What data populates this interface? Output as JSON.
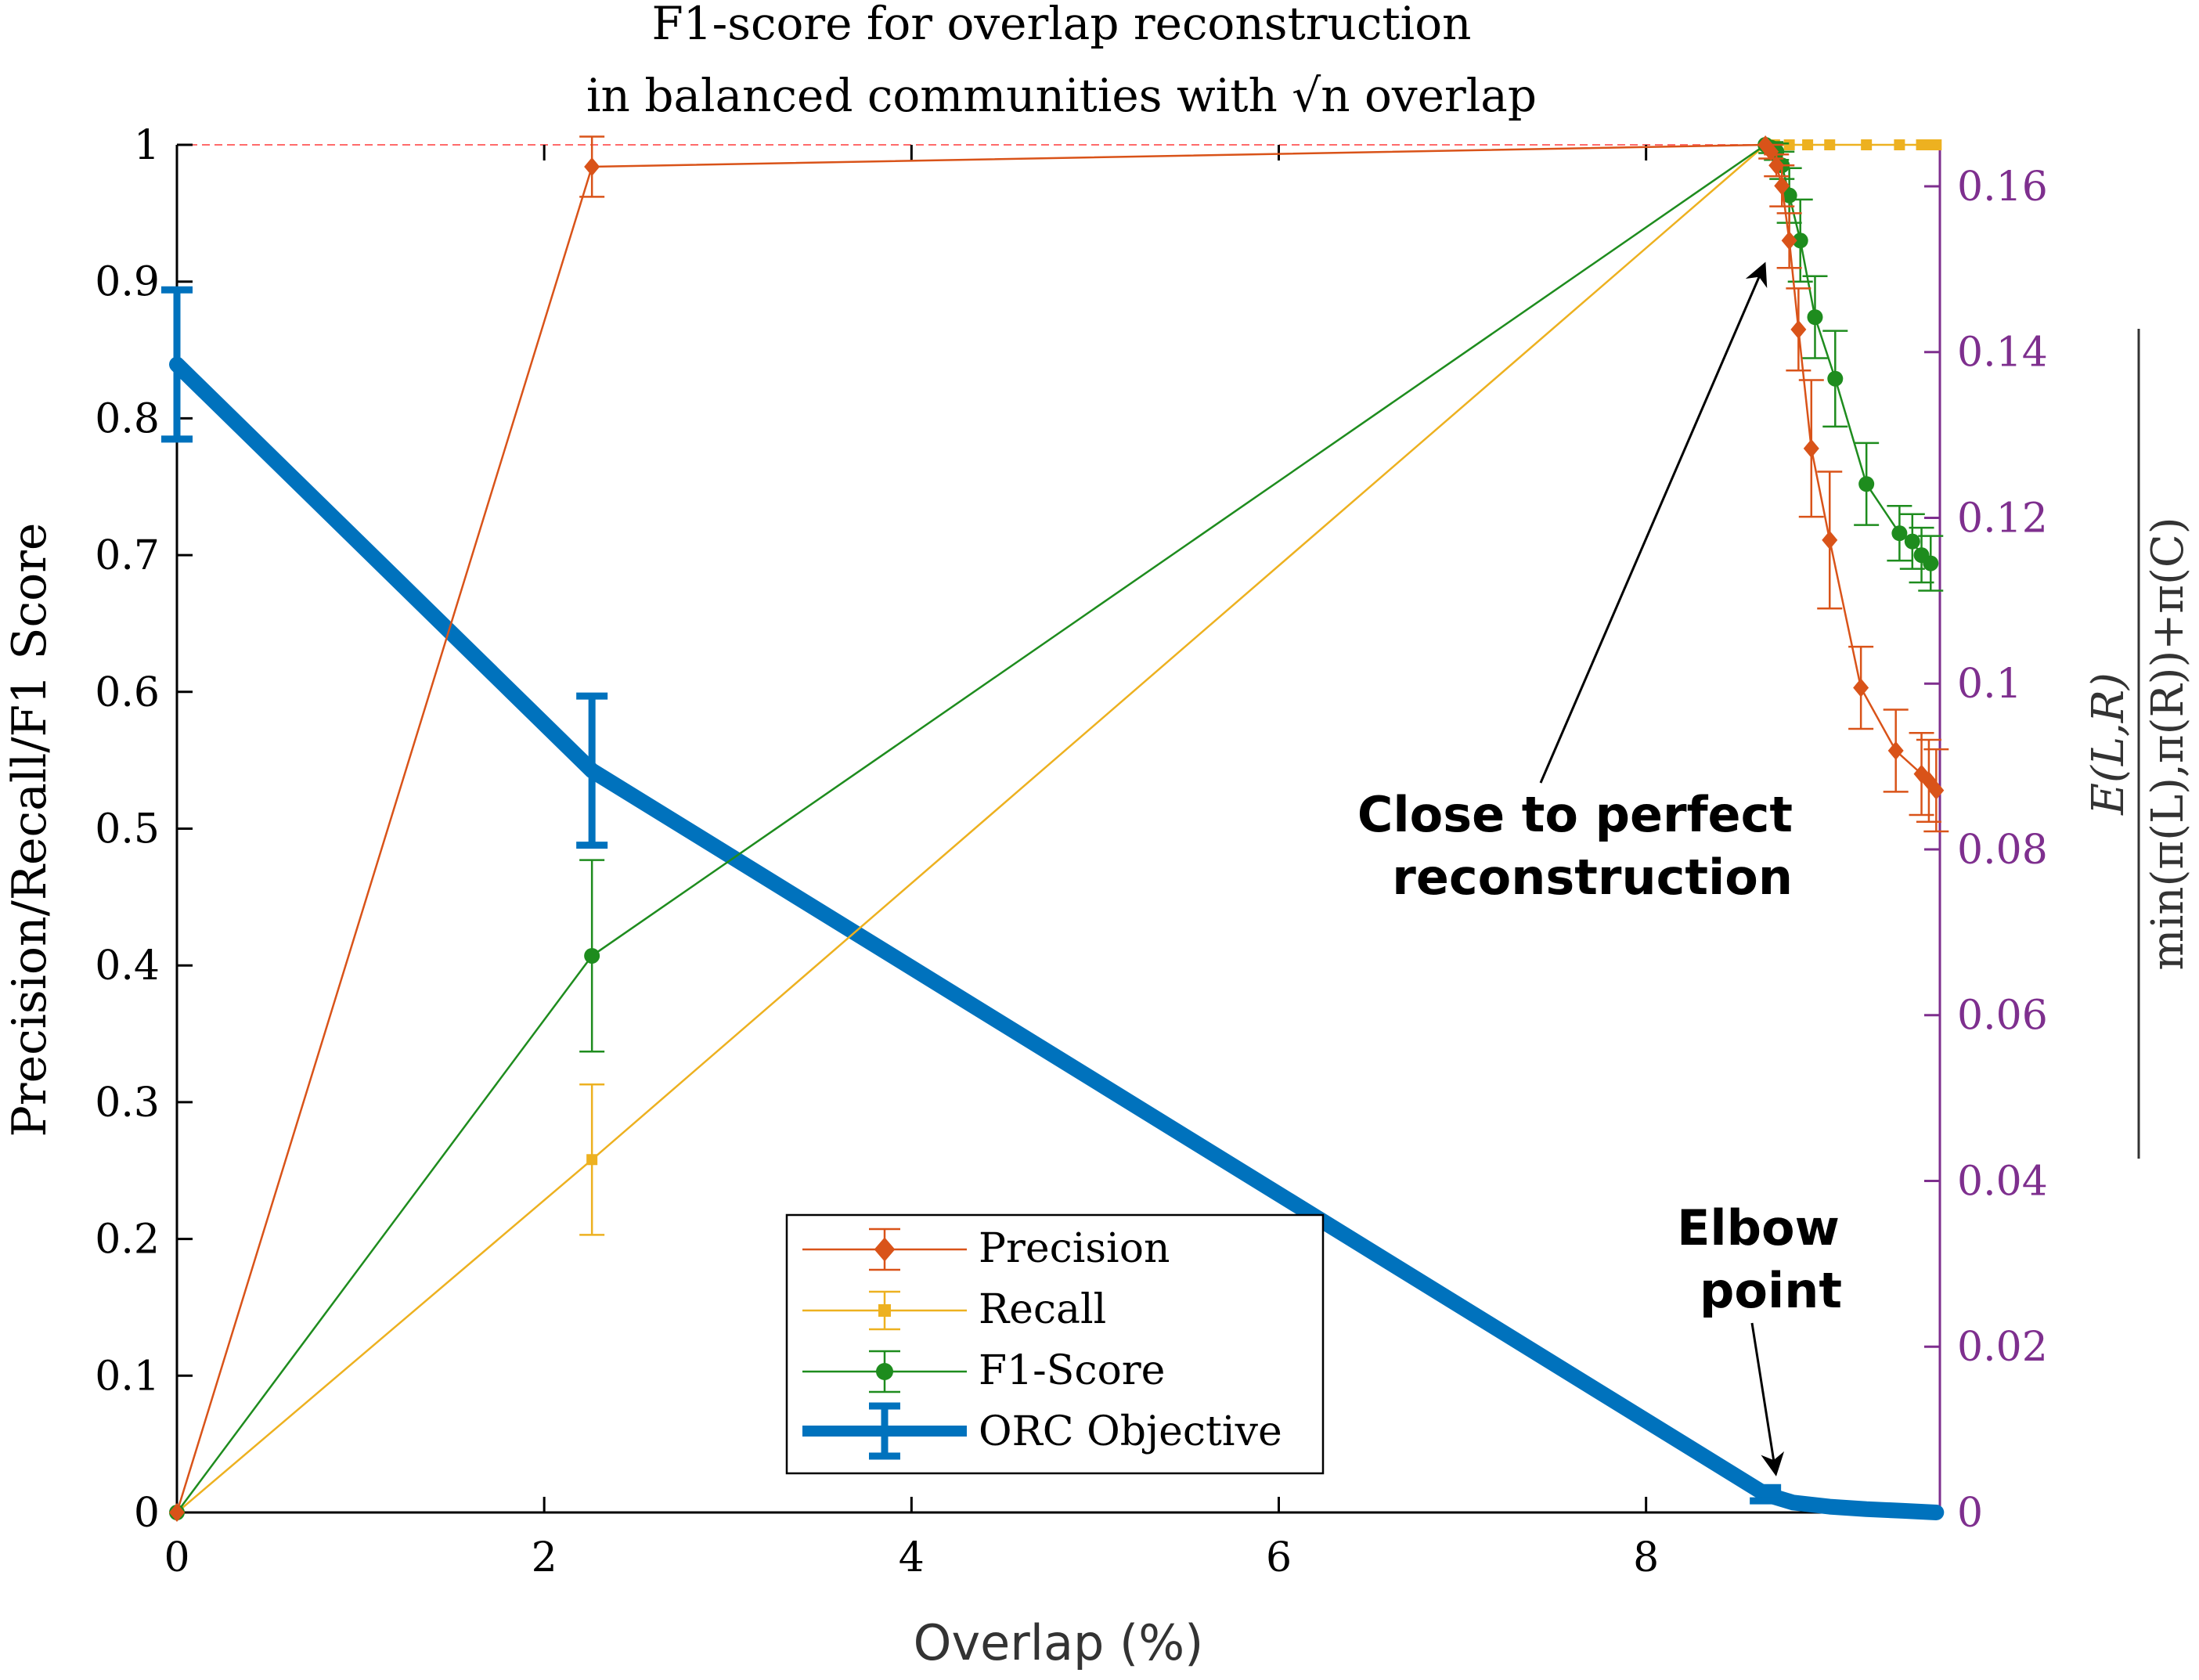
{
  "chart_data": {
    "type": "line",
    "title": [
      "F1-score for overlap reconstruction",
      "in balanced communities with √n overlap"
    ],
    "xlabel": "Overlap (%)",
    "ylabel": "Precision/Recall/F1 Score",
    "ylabel_right": {
      "numerator": "E(L,R)",
      "denominator": "min(π(L),π(R))+π(C)"
    },
    "xlim": [
      0,
      9.6
    ],
    "ylim": [
      0,
      1
    ],
    "ylim_right": [
      0,
      0.165
    ],
    "xticks": [
      0,
      2,
      4,
      6,
      8
    ],
    "xtick_labels": [
      "0",
      "2",
      "4",
      "6",
      "8"
    ],
    "yticks": [
      0,
      0.1,
      0.2,
      0.3,
      0.4,
      0.5,
      0.6,
      0.7,
      0.8,
      0.9,
      1
    ],
    "ytick_labels": [
      "0",
      "0.1",
      "0.2",
      "0.3",
      "0.4",
      "0.5",
      "0.6",
      "0.7",
      "0.8",
      "0.9",
      "1"
    ],
    "yticks_right": [
      0,
      0.02,
      0.04,
      0.06,
      0.08,
      0.1,
      0.12,
      0.14,
      0.16
    ],
    "ytick_labels_right": [
      "0",
      "0.02",
      "0.04",
      "0.06",
      "0.08",
      "0.1",
      "0.12",
      "0.14",
      "0.16"
    ],
    "reference_line_y": 1,
    "grid": false,
    "legend_position": "bottom-center",
    "colors": {
      "precision": "#D95319",
      "recall": "#EDB120",
      "f1": "#1E8C1E",
      "orc": "#0072BD",
      "right_axis": "#7E2F8E",
      "reference": "#FF6B6B"
    },
    "series": [
      {
        "name": "Precision",
        "axis": "left",
        "marker": "diamond",
        "x": [
          0,
          2.26,
          8.65,
          8.68,
          8.71,
          8.74,
          8.78,
          8.83,
          8.9,
          9.0,
          9.17,
          9.36,
          9.5,
          9.54,
          9.58
        ],
        "y": [
          0,
          0.984,
          1.0,
          0.995,
          0.985,
          0.97,
          0.93,
          0.865,
          0.778,
          0.711,
          0.603,
          0.557,
          0.54,
          0.535,
          0.528
        ],
        "err": [
          0,
          0.022,
          0,
          0.005,
          0.008,
          0.015,
          0.02,
          0.03,
          0.05,
          0.05,
          0.03,
          0.03,
          0.03,
          0.03,
          0.03
        ]
      },
      {
        "name": "Recall",
        "axis": "left",
        "marker": "star",
        "x": [
          0,
          2.26,
          8.65,
          8.7,
          8.78,
          8.88,
          9.0,
          9.2,
          9.38,
          9.5,
          9.55,
          9.58
        ],
        "y": [
          0,
          0.258,
          1.0,
          1.0,
          1.0,
          1.0,
          1.0,
          1.0,
          1.0,
          1.0,
          1.0,
          1.0
        ],
        "err": [
          0,
          0.055,
          0,
          0,
          0,
          0,
          0,
          0,
          0,
          0,
          0,
          0
        ]
      },
      {
        "name": "F1-Score",
        "axis": "left",
        "marker": "circle",
        "x": [
          0,
          2.26,
          8.65,
          8.68,
          8.71,
          8.74,
          8.78,
          8.84,
          8.92,
          9.03,
          9.2,
          9.38,
          9.45,
          9.5,
          9.55
        ],
        "y": [
          0,
          0.407,
          1.0,
          0.998,
          0.995,
          0.985,
          0.963,
          0.93,
          0.874,
          0.829,
          0.752,
          0.716,
          0.71,
          0.7,
          0.694
        ],
        "err": [
          0,
          0.07,
          0,
          0.004,
          0.006,
          0.01,
          0.02,
          0.03,
          0.03,
          0.035,
          0.03,
          0.02,
          0.02,
          0.02,
          0.02
        ]
      },
      {
        "name": "ORC Objective",
        "axis": "right",
        "marker": "none",
        "x": [
          0,
          2.26,
          8.65,
          8.8,
          9.0,
          9.2,
          9.4,
          9.58
        ],
        "y": [
          0.1385,
          0.0895,
          0.0022,
          0.0012,
          0.0007,
          0.0004,
          0.0002,
          0.0
        ],
        "err": [
          0.009,
          0.009,
          0.0008,
          0,
          0,
          0,
          0,
          0
        ]
      }
    ],
    "annotations": [
      {
        "id": "perfect",
        "lines": [
          "Close to perfect",
          "reconstruction"
        ],
        "target_x": 8.66,
        "target_y": 0.9
      },
      {
        "id": "elbow",
        "lines": [
          "Elbow",
          "point"
        ],
        "target_x": 8.66,
        "target_y": 0.006
      }
    ]
  }
}
